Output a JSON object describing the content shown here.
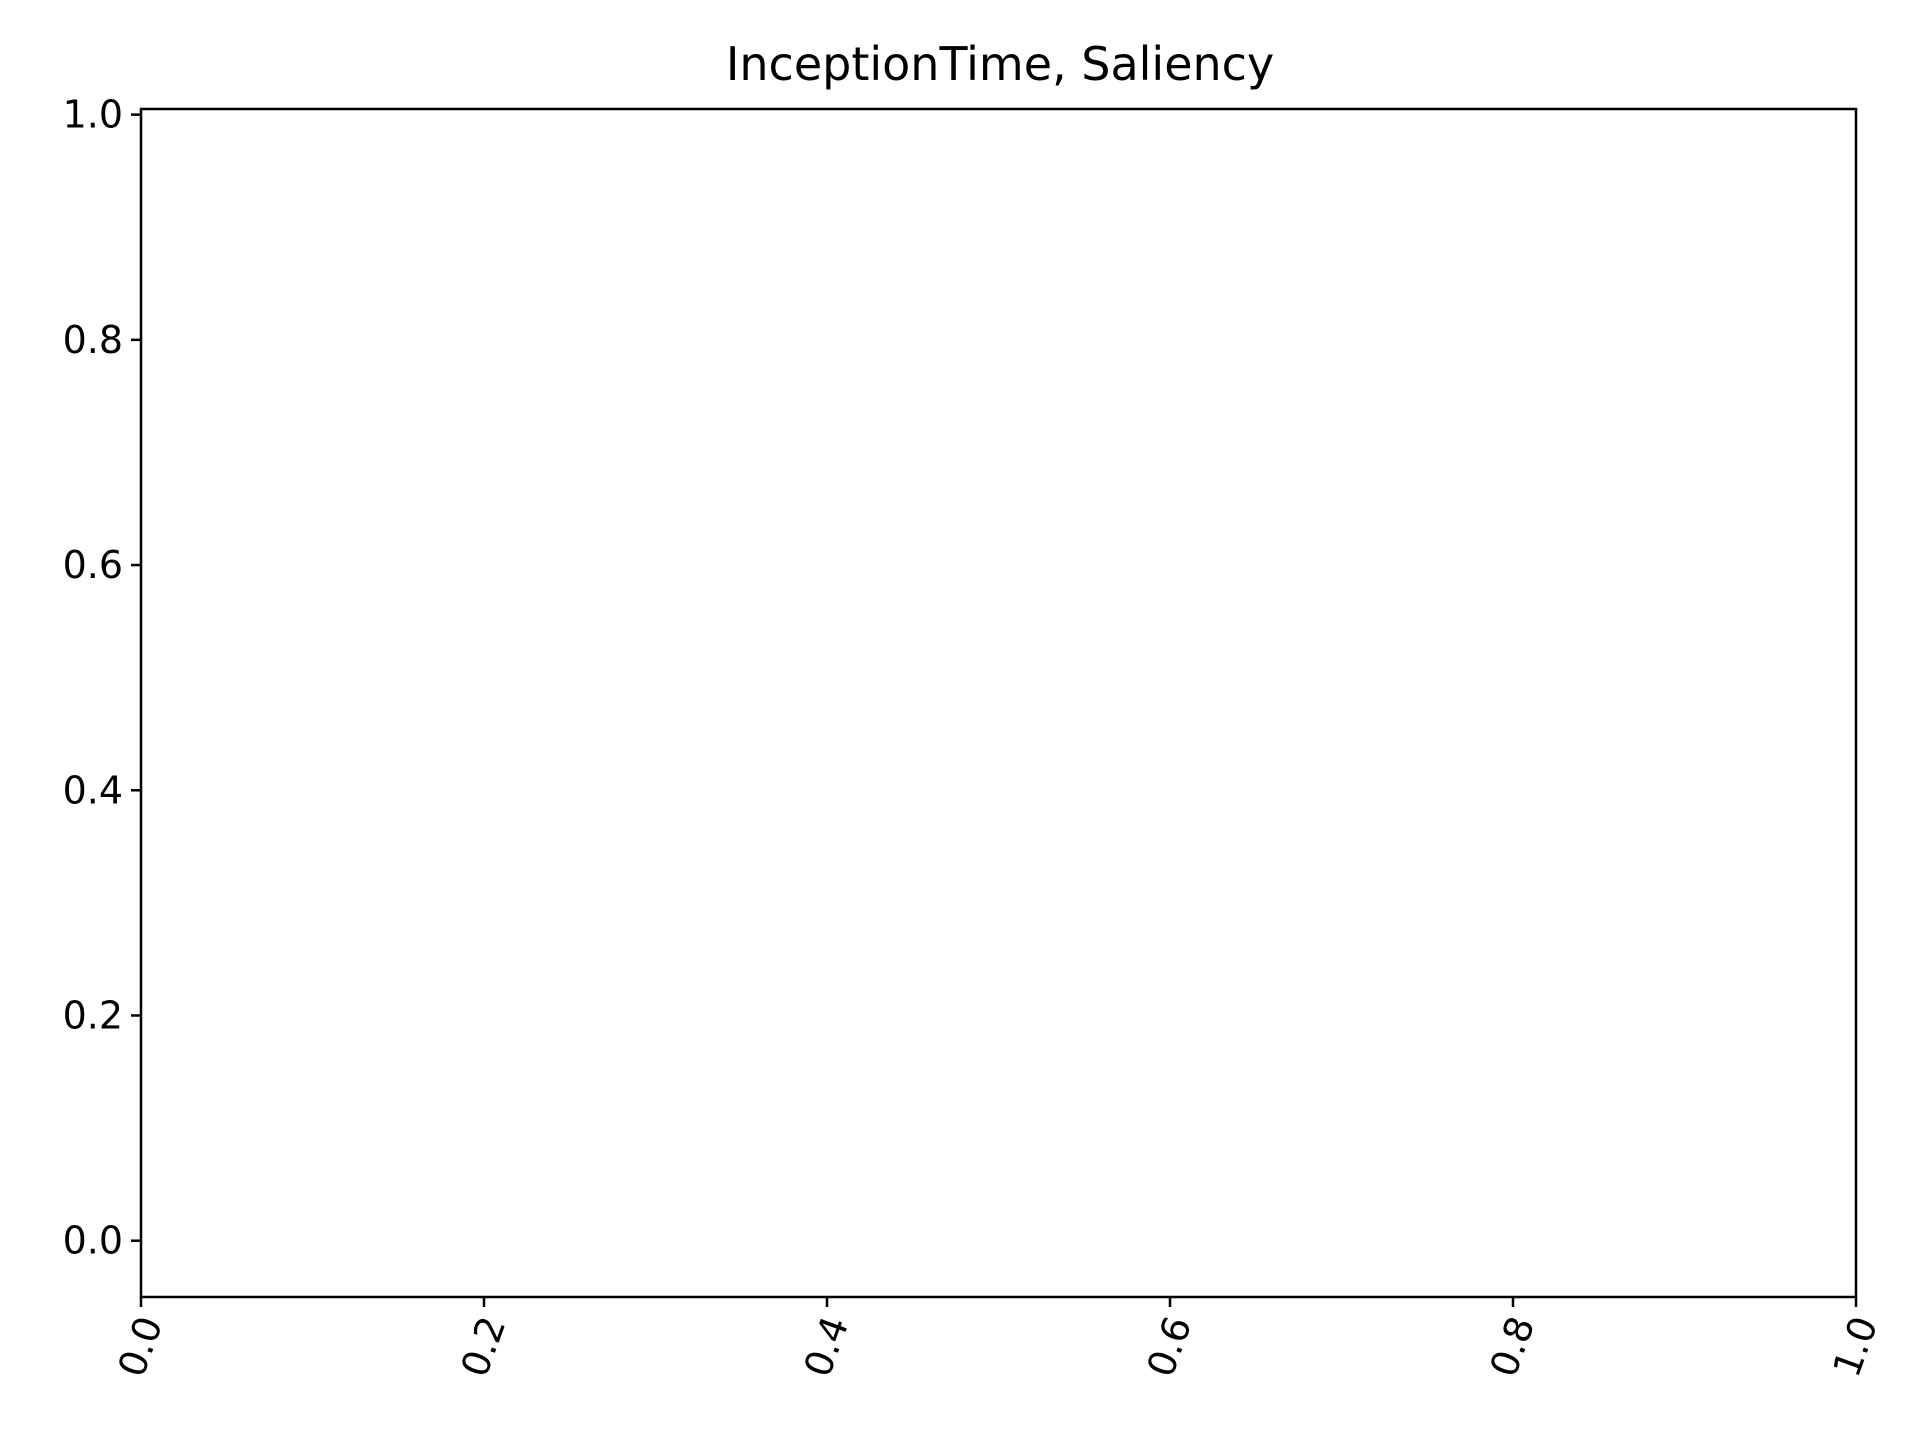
{
  "chart_data": {
    "type": "line",
    "title": "InceptionTime, Saliency",
    "xlabel": "",
    "ylabel": "",
    "xlim": [
      0.0,
      1.0
    ],
    "ylim": [
      -0.05,
      1.005
    ],
    "x_ticks": [
      "0.0",
      "0.2",
      "0.4",
      "0.6",
      "0.8",
      "1.0"
    ],
    "y_ticks": [
      "0.0",
      "0.2",
      "0.4",
      "0.6",
      "0.8",
      "1.0"
    ],
    "x_tick_rotation": "rotated",
    "series": [],
    "grid": false,
    "legend": "none"
  },
  "colors": {
    "axes": "#000000",
    "background": "#ffffff"
  }
}
